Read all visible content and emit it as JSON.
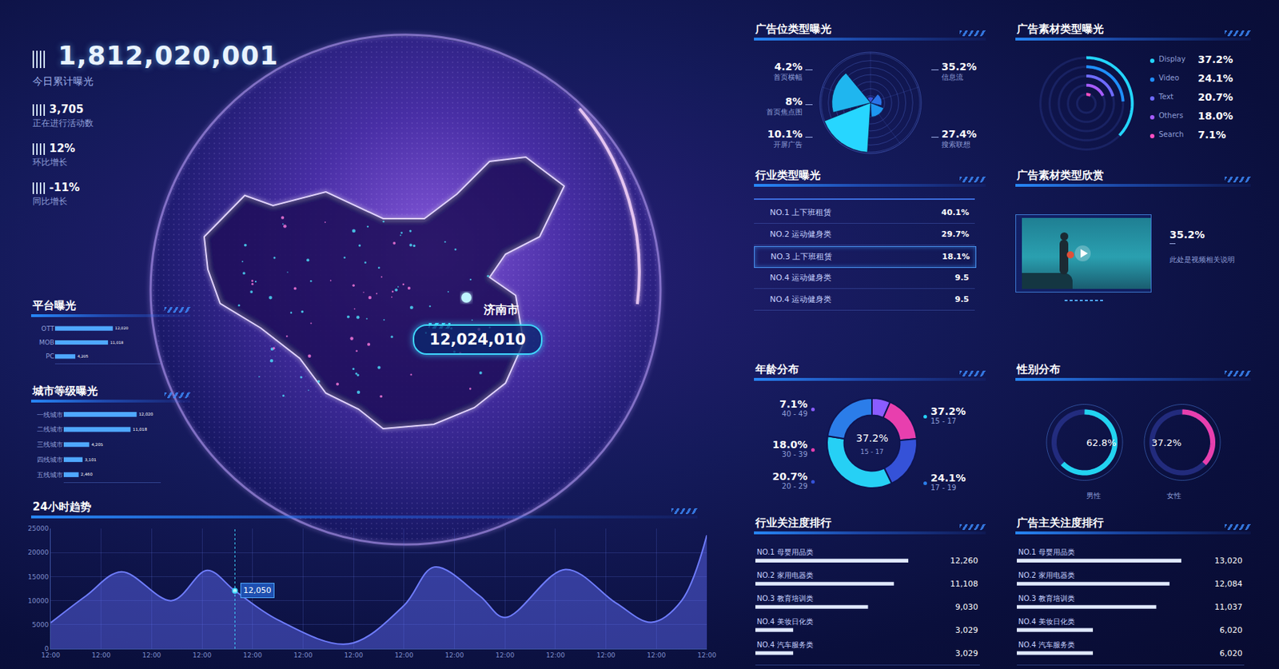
{
  "header": {
    "total": "1,812,020,001",
    "total_label": "今日累计曝光"
  },
  "kpis": [
    {
      "value": "3,705",
      "label": "正在进行活动数"
    },
    {
      "value": "12%",
      "label": "环比增长"
    },
    {
      "value": "-11%",
      "label": "同比增长"
    }
  ],
  "map": {
    "city": "济南市",
    "value": "12,024,010"
  },
  "industry_exposure": {
    "title": "行业类型曝光",
    "rows": [
      {
        "name": "NO.1 上下班租赁",
        "value": "40.1%"
      },
      {
        "name": "NO.2 运动健身类",
        "value": "29.7%"
      },
      {
        "name": "NO.3 上下班租赁",
        "value": "18.1%"
      },
      {
        "name": "NO.4 运动健身类",
        "value": "9.5"
      },
      {
        "name": "NO.4 运动健身类",
        "value": "9.5"
      }
    ],
    "highlight": 2
  },
  "material_showcase": {
    "title": "广告素材类型欣赏",
    "value": "35.2%",
    "caption": "此处是视频相关说明"
  },
  "chart_data": [
    {
      "type": "bar",
      "title": "平台曝光",
      "orientation": "horizontal",
      "categories": [
        "OTT",
        "MOB",
        "PC"
      ],
      "values": [
        12020,
        11018,
        4205
      ],
      "value_labels": [
        "12,020",
        "11,018",
        "4,205"
      ],
      "data_labels": true,
      "tick_labels": "y",
      "xlim": [
        0,
        22000
      ],
      "color": "#4fa8ff"
    },
    {
      "type": "bar",
      "title": "城市等级曝光",
      "orientation": "horizontal",
      "categories": [
        "一线城市",
        "二线城市",
        "三线城市",
        "四线城市",
        "五线城市"
      ],
      "values": [
        12020,
        11018,
        4205,
        3101,
        2460
      ],
      "value_labels": [
        "12,020",
        "11,018",
        "4,205",
        "3,101",
        "2,460"
      ],
      "data_labels": true,
      "tick_labels": "y",
      "xlim": [
        0,
        16000
      ],
      "color": "#4fa8ff"
    },
    {
      "type": "line",
      "title": "24小时趋势",
      "x": [
        0,
        0.7,
        1.4,
        2.4,
        3.1,
        3.65,
        4.5,
        5.9,
        7.0,
        7.6,
        8.5,
        9.0,
        10.2,
        11.2,
        11.9,
        12.5,
        13
      ],
      "values": [
        5400,
        11000,
        16000,
        10000,
        16300,
        12050,
        6000,
        1000,
        9000,
        17000,
        11000,
        6500,
        16500,
        9500,
        5500,
        10000,
        23600
      ],
      "xlim": [
        0,
        13
      ],
      "xticks": [
        {
          "value": 0,
          "label": "12:00"
        },
        {
          "value": 1,
          "label": "12:00"
        },
        {
          "value": 2,
          "label": "12:00"
        },
        {
          "value": 3,
          "label": "12:00"
        },
        {
          "value": 4,
          "label": "12:00"
        },
        {
          "value": 5,
          "label": "12:00"
        },
        {
          "value": 6,
          "label": "12:00"
        },
        {
          "value": 7,
          "label": "12:00"
        },
        {
          "value": 8,
          "label": "12:00"
        },
        {
          "value": 9,
          "label": "12:00"
        },
        {
          "value": 10,
          "label": "12:00"
        },
        {
          "value": 11,
          "label": "12:00"
        },
        {
          "value": 12,
          "label": "12:00"
        },
        {
          "value": 13,
          "label": "12:00"
        }
      ],
      "ylim": [
        0,
        25000
      ],
      "yticks": [
        0,
        5000,
        10000,
        15000,
        20000,
        25000
      ],
      "grid": true,
      "annotations": [
        {
          "x": 3.65,
          "y": 12050,
          "text": "12,050"
        }
      ],
      "color": "#6f7dff"
    },
    {
      "type": "rose",
      "title": "广告位类型曝光",
      "categories": [
        "首页横幅",
        "首页焦点图",
        "开屏广告",
        "信息流",
        "搜索联想"
      ],
      "values": [
        4.2,
        8,
        10.1,
        35.2,
        27.4
      ],
      "value_labels": [
        "4.2%",
        "8%",
        "10.1%",
        "35.2%",
        "27.4%"
      ],
      "ylim": [
        0,
        36
      ],
      "colors": [
        "#3b52d6",
        "#2a74e8",
        "#1d97f0",
        "#27d6ff",
        "#1fb6ef"
      ]
    },
    {
      "type": "radial_bar",
      "title": "广告素材类型曝光",
      "categories": [
        "Display",
        "Video",
        "Text",
        "Others",
        "Search"
      ],
      "values": [
        37.2,
        24.1,
        20.7,
        18.0,
        7.1
      ],
      "value_labels": [
        "37.2%",
        "24.1%",
        "20.7%",
        "18.0%",
        "7.1%"
      ],
      "colors": [
        "#23d5ff",
        "#1f8fff",
        "#6e6bff",
        "#a65cff",
        "#ff4fc3"
      ]
    },
    {
      "type": "pie",
      "title": "年龄分布",
      "categories": [
        "40 - 49",
        "30 - 39",
        "20 - 29",
        "15 - 17",
        "17 - 19"
      ],
      "values": [
        7.1,
        18.0,
        20.7,
        37.2,
        24.1
      ],
      "value_labels": [
        "7.1%",
        "18.0%",
        "20.7%",
        "37.2%",
        "24.1%"
      ],
      "center": {
        "value": "37.2%",
        "label": "15 - 17"
      },
      "colors": [
        "#8a5cff",
        "#e83fae",
        "#3552d8",
        "#26d0f5",
        "#2b7de9"
      ]
    },
    {
      "type": "gauge",
      "title": "性别分布",
      "categories": [
        "男性",
        "女性"
      ],
      "values": [
        62.8,
        37.2
      ],
      "value_labels": [
        "62.8%",
        "37.2%"
      ],
      "colors": [
        "#22d3f0",
        "#e83fae"
      ]
    },
    {
      "type": "bar",
      "title": "行业关注度排行",
      "orientation": "horizontal",
      "categories": [
        "NO.1 母婴用品类",
        "NO.2 家用电器类",
        "NO.3 教育培训类",
        "NO.4 美妆日化类",
        "NO.4 汽车服务类"
      ],
      "values": [
        12260,
        11108,
        9030,
        3029,
        3029
      ],
      "value_labels": [
        "12,260",
        "11,108",
        "9,030",
        "3,029",
        "3,029"
      ],
      "data_labels": true,
      "tick_labels": false,
      "xlim": [
        0,
        18000
      ],
      "color": "#dfe8ff"
    },
    {
      "type": "bar",
      "title": "广告主关注度排行",
      "orientation": "horizontal",
      "categories": [
        "NO.1 母婴用品类",
        "NO.2 家用电器类",
        "NO.3 教育培训类",
        "NO.4 美妆日化类",
        "NO.4 汽车服务类"
      ],
      "values": [
        13020,
        12084,
        11037,
        6020,
        6020
      ],
      "value_labels": [
        "13,020",
        "12,084",
        "11,037",
        "6,020",
        "6,020"
      ],
      "data_labels": true,
      "tick_labels": false,
      "xlim": [
        0,
        18000
      ],
      "color": "#dfe8ff"
    }
  ]
}
